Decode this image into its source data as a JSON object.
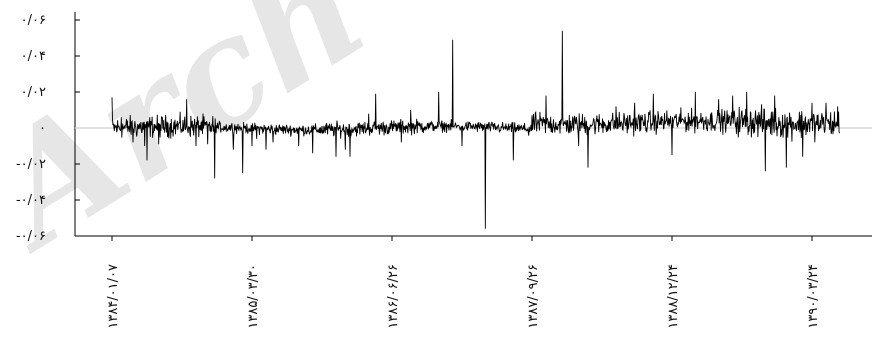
{
  "watermark_text": "Arch",
  "chart_data": {
    "type": "line",
    "title": "",
    "xlabel": "",
    "ylabel": "",
    "ylim": [
      -0.06,
      0.06
    ],
    "y_ticks": [
      {
        "value": 0.06,
        "label": "۰/۰۶"
      },
      {
        "value": 0.04,
        "label": "۰/۰۴"
      },
      {
        "value": 0.02,
        "label": "۰/۰۲"
      },
      {
        "value": 0,
        "label": "۰"
      },
      {
        "value": -0.02,
        "label": "-۰/۰۲"
      },
      {
        "value": -0.04,
        "label": "-۰/۰۴"
      },
      {
        "value": -0.06,
        "label": "-۰/۰۶"
      }
    ],
    "x_ticks": [
      {
        "index": 0,
        "label": "۱۳۸۴/۰۱/۰۷"
      },
      {
        "index": 300,
        "label": "۱۳۸۵/۰۳/۳۰"
      },
      {
        "index": 600,
        "label": "۱۳۸۶/۰۶/۲۶"
      },
      {
        "index": 900,
        "label": "۱۳۸۷/۰۹/۲۶"
      },
      {
        "index": 1200,
        "label": "۱۳۸۸/۱۲/۲۴"
      },
      {
        "index": 1500,
        "label": "۱۳۹۰/۰۳/۲۴"
      }
    ],
    "x_count": 1560,
    "series": [
      {
        "color": "#000000",
        "base_noise": [
          0.003,
          0.0015,
          0.002,
          0.0015,
          0.003,
          0.003,
          0.004
        ],
        "points": [
          [
            0,
            0.017
          ],
          [
            20,
            0.006
          ],
          [
            45,
            -0.008
          ],
          [
            70,
            -0.01
          ],
          [
            75,
            -0.018
          ],
          [
            100,
            -0.009
          ],
          [
            160,
            0.016
          ],
          [
            180,
            -0.01
          ],
          [
            205,
            -0.009
          ],
          [
            220,
            -0.028
          ],
          [
            260,
            -0.012
          ],
          [
            280,
            -0.025
          ],
          [
            300,
            -0.01
          ],
          [
            310,
            -0.006
          ],
          [
            330,
            -0.012
          ],
          [
            345,
            -0.008
          ],
          [
            400,
            -0.01
          ],
          [
            430,
            -0.014
          ],
          [
            480,
            -0.016
          ],
          [
            500,
            -0.012
          ],
          [
            510,
            -0.016
          ],
          [
            550,
            0.008
          ],
          [
            565,
            0.019
          ],
          [
            620,
            -0.008
          ],
          [
            640,
            0.01
          ],
          [
            700,
            0.02
          ],
          [
            730,
            0.049
          ],
          [
            750,
            -0.01
          ],
          [
            800,
            -0.056
          ],
          [
            860,
            -0.018
          ],
          [
            930,
            0.018
          ],
          [
            965,
            0.054
          ],
          [
            1000,
            -0.01
          ],
          [
            1020,
            -0.022
          ],
          [
            1080,
            0.012
          ],
          [
            1120,
            0.014
          ],
          [
            1160,
            0.019
          ],
          [
            1200,
            -0.015
          ],
          [
            1250,
            0.02
          ],
          [
            1300,
            0.016
          ],
          [
            1330,
            0.018
          ],
          [
            1360,
            0.02
          ],
          [
            1400,
            -0.024
          ],
          [
            1420,
            0.018
          ],
          [
            1445,
            -0.022
          ],
          [
            1480,
            -0.016
          ],
          [
            1500,
            0.014
          ],
          [
            1530,
            0.014
          ],
          [
            1555,
            0.012
          ]
        ]
      }
    ],
    "grid": false
  }
}
